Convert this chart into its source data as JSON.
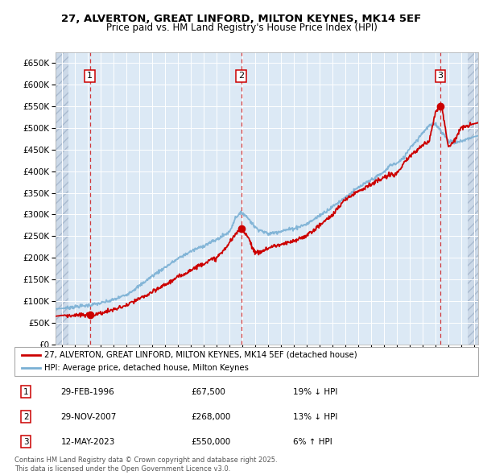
{
  "title": "27, ALVERTON, GREAT LINFORD, MILTON KEYNES, MK14 5EF",
  "subtitle": "Price paid vs. HM Land Registry's House Price Index (HPI)",
  "ylim": [
    0,
    675000
  ],
  "xlim_start": 1993.5,
  "xlim_end": 2026.3,
  "background_color": "#dce9f5",
  "grid_color": "#ffffff",
  "sale_dates": [
    1996.164,
    2007.915,
    2023.364
  ],
  "sale_prices": [
    67500,
    268000,
    550000
  ],
  "sale_labels": [
    "1",
    "2",
    "3"
  ],
  "legend_line1": "27, ALVERTON, GREAT LINFORD, MILTON KEYNES, MK14 5EF (detached house)",
  "legend_line2": "HPI: Average price, detached house, Milton Keynes",
  "table_entries": [
    {
      "label": "1",
      "date": "29-FEB-1996",
      "price": "£67,500",
      "hpi": "19% ↓ HPI"
    },
    {
      "label": "2",
      "date": "29-NOV-2007",
      "price": "£268,000",
      "hpi": "13% ↓ HPI"
    },
    {
      "label": "3",
      "date": "12-MAY-2023",
      "price": "£550,000",
      "hpi": "6% ↑ HPI"
    }
  ],
  "footer": "Contains HM Land Registry data © Crown copyright and database right 2025.\nThis data is licensed under the Open Government Licence v3.0.",
  "red_line_color": "#cc0000",
  "blue_line_color": "#7ab0d4",
  "sale_dot_color": "#cc0000",
  "dashed_line_color": "#cc0000",
  "hpi_anchors_x": [
    1993.5,
    1994,
    1995,
    1996,
    1997,
    1998,
    1999,
    2000,
    2001,
    2002,
    2003,
    2004,
    2005,
    2006,
    2007,
    2007.5,
    2008,
    2008.5,
    2009,
    2010,
    2011,
    2012,
    2013,
    2014,
    2015,
    2016,
    2017,
    2018,
    2019,
    2019.5,
    2020,
    2020.5,
    2021,
    2021.5,
    2022,
    2022.5,
    2023,
    2023.5,
    2024,
    2024.5,
    2025,
    2026,
    2026.3
  ],
  "hpi_anchors_y": [
    82000,
    83000,
    87000,
    90000,
    95000,
    103000,
    115000,
    135000,
    158000,
    178000,
    198000,
    215000,
    228000,
    242000,
    260000,
    295000,
    305000,
    290000,
    270000,
    255000,
    262000,
    268000,
    278000,
    298000,
    318000,
    340000,
    362000,
    380000,
    398000,
    415000,
    418000,
    430000,
    455000,
    470000,
    490000,
    505000,
    510000,
    490000,
    470000,
    465000,
    470000,
    480000,
    482000
  ],
  "price_anchors_x": [
    1993.5,
    1994,
    1995,
    1995.5,
    1996.0,
    1996.164,
    1996.5,
    1997,
    1998,
    1999,
    2000,
    2001,
    2002,
    2003,
    2004,
    2005,
    2006,
    2006.5,
    2007,
    2007.5,
    2007.915,
    2008,
    2008.5,
    2009,
    2009.5,
    2010,
    2010.5,
    2011,
    2012,
    2013,
    2014,
    2015,
    2016,
    2017,
    2018,
    2019,
    2019.5,
    2020,
    2021,
    2022,
    2022.5,
    2023.0,
    2023.364,
    2023.5,
    2024,
    2024.3,
    2024.6,
    2025,
    2026,
    2026.3
  ],
  "price_anchors_y": [
    65000,
    67000,
    67000,
    67500,
    67500,
    67500,
    68000,
    72000,
    80000,
    90000,
    105000,
    120000,
    138000,
    155000,
    172000,
    188000,
    200000,
    215000,
    235000,
    255000,
    268000,
    268000,
    245000,
    210000,
    215000,
    222000,
    228000,
    230000,
    238000,
    252000,
    275000,
    300000,
    335000,
    355000,
    370000,
    385000,
    392000,
    395000,
    435000,
    460000,
    470000,
    540000,
    550000,
    545000,
    455000,
    465000,
    480000,
    500000,
    510000,
    512000
  ]
}
